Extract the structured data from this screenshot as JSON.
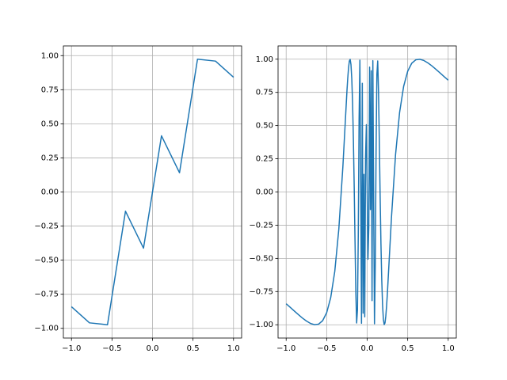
{
  "chart_data": [
    {
      "type": "line",
      "color": "#1f77b4",
      "grid": true,
      "x": [
        -1.0,
        -0.7778,
        -0.5556,
        -0.3333,
        -0.1111,
        0.1111,
        0.3333,
        0.5556,
        0.7778,
        1.0
      ],
      "values": [
        -0.8415,
        -0.9598,
        -0.9738,
        -0.1411,
        -0.4121,
        0.4121,
        0.1411,
        0.9738,
        0.9598,
        0.8415
      ],
      "xlim": [
        -1.1,
        1.1
      ],
      "ylim": [
        -1.0712,
        1.0712
      ],
      "xticks": [
        {
          "value": -1.0,
          "label": "−1.0"
        },
        {
          "value": -0.5,
          "label": "−0.5"
        },
        {
          "value": 0,
          "label": "0.0"
        },
        {
          "value": 0.5,
          "label": "0.5"
        },
        {
          "value": 1.0,
          "label": "1.0"
        }
      ],
      "yticks": [
        {
          "value": -1.0,
          "label": "−1.00"
        },
        {
          "value": -0.75,
          "label": "−0.75"
        },
        {
          "value": -0.5,
          "label": "−0.50"
        },
        {
          "value": -0.25,
          "label": "−0.25"
        },
        {
          "value": 0,
          "label": "0.00"
        },
        {
          "value": 0.25,
          "label": "0.25"
        },
        {
          "value": 0.5,
          "label": "0.50"
        },
        {
          "value": 0.75,
          "label": "0.75"
        },
        {
          "value": 1.0,
          "label": "1.00"
        }
      ]
    },
    {
      "type": "line",
      "color": "#1f77b4",
      "grid": true,
      "x": [
        -1.0,
        -0.95,
        -0.9,
        -0.85,
        -0.8,
        -0.75,
        -0.7,
        -0.65,
        -0.6,
        -0.55,
        -0.5,
        -0.45,
        -0.4,
        -0.35,
        -0.3,
        -0.25,
        -0.24,
        -0.23,
        -0.22,
        -0.21,
        -0.2,
        -0.19,
        -0.18,
        -0.17,
        -0.16,
        -0.15,
        -0.14,
        -0.13,
        -0.12,
        -0.11,
        -0.1,
        -0.09,
        -0.08,
        -0.07,
        -0.06,
        -0.05,
        -0.04,
        -0.03,
        -0.02,
        -0.01,
        0.01,
        0.02,
        0.03,
        0.04,
        0.05,
        0.06,
        0.07,
        0.08,
        0.09,
        0.1,
        0.11,
        0.12,
        0.13,
        0.14,
        0.15,
        0.16,
        0.17,
        0.18,
        0.19,
        0.2,
        0.21,
        0.22,
        0.23,
        0.24,
        0.25,
        0.3,
        0.35,
        0.4,
        0.45,
        0.5,
        0.55,
        0.6,
        0.65,
        0.7,
        0.75,
        0.8,
        0.85,
        0.9,
        0.95,
        1.0
      ],
      "values": [
        -0.8415,
        -0.8685,
        -0.8962,
        -0.9233,
        -0.949,
        -0.9719,
        -0.9899,
        -0.9995,
        -0.9954,
        -0.9696,
        -0.9093,
        -0.7952,
        -0.5985,
        -0.28,
        0.1906,
        0.7568,
        0.8548,
        0.9345,
        0.9862,
        0.9988,
        0.9589,
        0.8521,
        0.6647,
        0.3909,
        0.0332,
        -0.3742,
        -0.7576,
        -0.9869,
        -0.8876,
        -0.3293,
        0.544,
        0.9929,
        0.0663,
        -0.989,
        0.8183,
        -0.9129,
        0.1323,
        -0.9406,
        0.2624,
        0.5064,
        -0.5064,
        -0.2624,
        0.9406,
        -0.1323,
        0.9129,
        -0.8183,
        0.989,
        -0.0663,
        -0.9929,
        -0.544,
        0.3293,
        0.8876,
        0.9869,
        0.7576,
        0.3742,
        -0.0332,
        -0.3909,
        -0.6647,
        -0.8521,
        -0.9589,
        -0.9988,
        -0.9862,
        -0.9345,
        -0.8548,
        -0.7568,
        -0.1906,
        0.28,
        0.5985,
        0.7952,
        0.9093,
        0.9696,
        0.9954,
        0.9995,
        0.9899,
        0.9719,
        0.949,
        0.9233,
        0.8962,
        0.8685,
        0.8415
      ],
      "xlim": [
        -1.1,
        1.1
      ],
      "ylim": [
        -1.1,
        1.1
      ],
      "xticks": [
        {
          "value": -1.0,
          "label": "−1.0"
        },
        {
          "value": -0.5,
          "label": "−0.5"
        },
        {
          "value": 0,
          "label": "0.0"
        },
        {
          "value": 0.5,
          "label": "0.5"
        },
        {
          "value": 1.0,
          "label": "1.0"
        }
      ],
      "yticks": [
        {
          "value": -1.0,
          "label": "−1.00"
        },
        {
          "value": -0.75,
          "label": "−0.75"
        },
        {
          "value": -0.5,
          "label": "−0.50"
        },
        {
          "value": -0.25,
          "label": "−0.25"
        },
        {
          "value": 0,
          "label": "0.00"
        },
        {
          "value": 0.25,
          "label": "0.25"
        },
        {
          "value": 0.5,
          "label": "0.50"
        },
        {
          "value": 0.75,
          "label": "0.75"
        },
        {
          "value": 1.0,
          "label": "1.00"
        }
      ]
    }
  ]
}
